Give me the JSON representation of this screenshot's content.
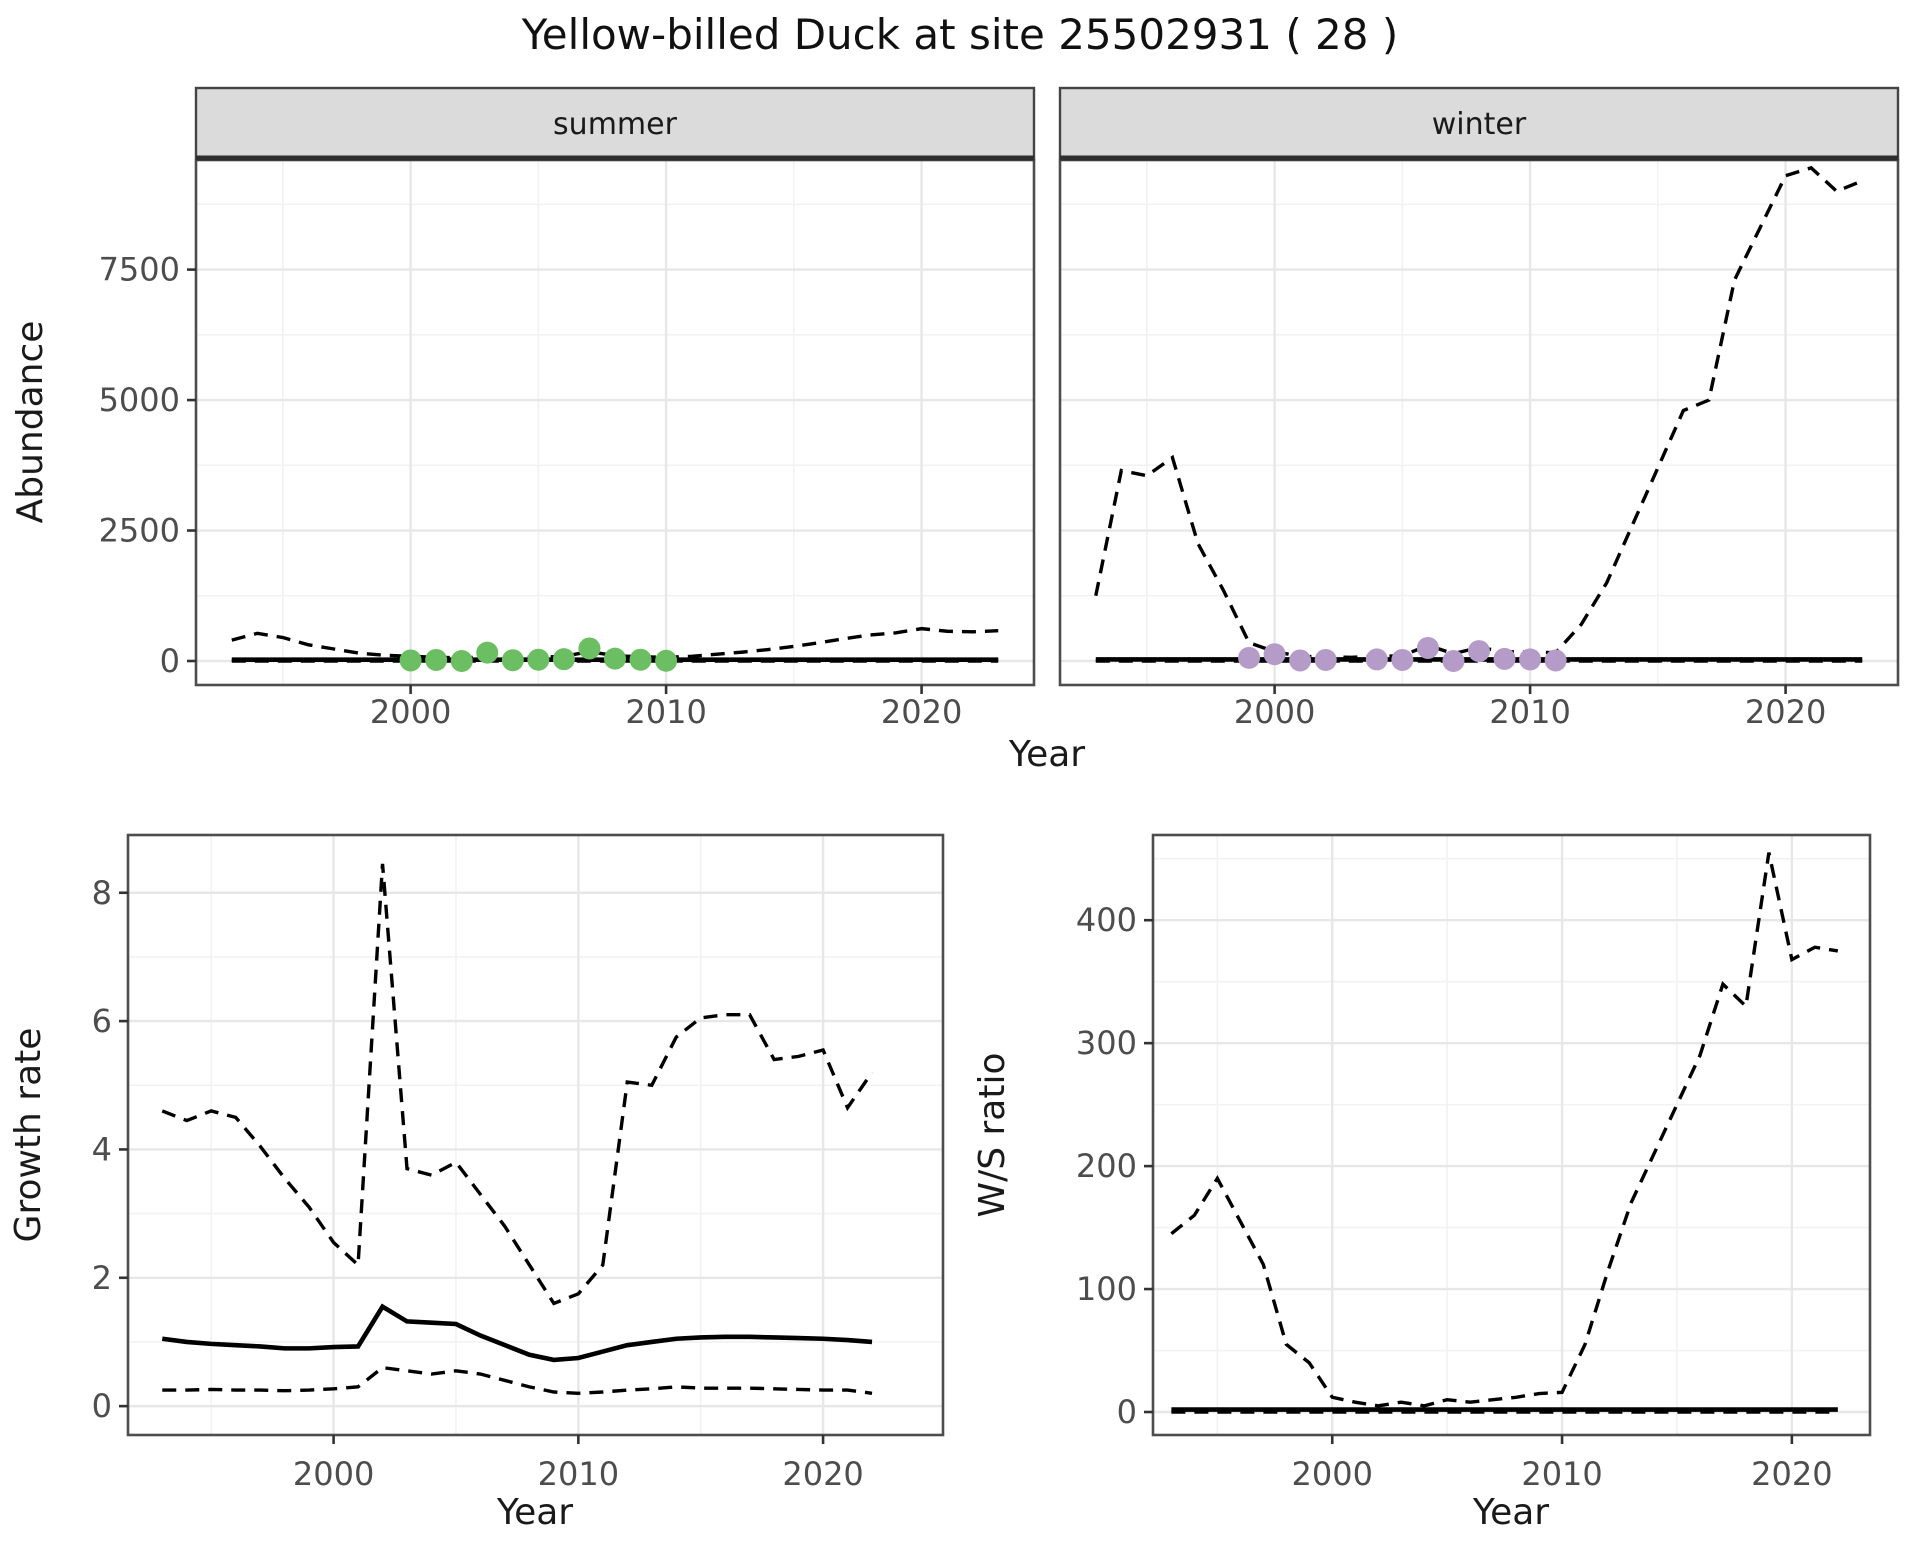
{
  "title": "Yellow-billed Duck at site 25502931 ( 28 )",
  "colors": {
    "background": "#FFFFFF",
    "line": "#000000",
    "summer_points": "#6CBE63",
    "winter_points": "#B59CC8",
    "strip_bg": "#DBDBDB",
    "strip_border": "#444444",
    "panel_border": "#4D4D4D",
    "grid_major": "#E7E7E7",
    "grid_minor": "#F2F2F2",
    "tick_label": "#4D4D4D",
    "axis_title": "#1A1A1A"
  },
  "axis": {
    "shared_x_title": "Year"
  },
  "chart_data": [
    {
      "id": "summer",
      "type": "line",
      "facet_label": "summer",
      "xlabel": "Year",
      "ylabel": "Abundance",
      "x_ticks": [
        2000,
        2010,
        2020
      ],
      "y_ticks": [
        0,
        2500,
        5000,
        7500
      ],
      "xlim": [
        1991.6,
        2024.4
      ],
      "ylim": [
        -460,
        9600
      ],
      "grid": true,
      "legend": "none",
      "x": [
        1993,
        1994,
        1995,
        1996,
        1997,
        1998,
        1999,
        2000,
        2001,
        2002,
        2003,
        2004,
        2005,
        2006,
        2007,
        2008,
        2009,
        2010,
        2011,
        2012,
        2013,
        2014,
        2015,
        2016,
        2017,
        2018,
        2019,
        2020,
        2021,
        2022,
        2023
      ],
      "series": [
        {
          "name": "upper 95% CI",
          "style": "dashed",
          "values": [
            400,
            530,
            450,
            310,
            230,
            150,
            110,
            90,
            70,
            60,
            80,
            70,
            70,
            90,
            180,
            100,
            80,
            70,
            90,
            130,
            170,
            220,
            280,
            350,
            430,
            500,
            540,
            620,
            570,
            560,
            580
          ]
        },
        {
          "name": "median",
          "style": "solid",
          "values": [
            25,
            25,
            25,
            25,
            25,
            25,
            25,
            25,
            25,
            25,
            25,
            25,
            25,
            25,
            25,
            25,
            25,
            25,
            25,
            25,
            25,
            25,
            25,
            25,
            25,
            25,
            25,
            25,
            25,
            25,
            25
          ]
        },
        {
          "name": "lower 95% CI",
          "style": "dashed",
          "values": [
            0,
            0,
            0,
            0,
            0,
            0,
            0,
            0,
            0,
            0,
            0,
            0,
            0,
            0,
            0,
            0,
            0,
            0,
            0,
            0,
            0,
            0,
            0,
            0,
            0,
            0,
            0,
            0,
            0,
            0,
            0
          ]
        }
      ],
      "points": {
        "name": "observed summer counts",
        "color": "#6CBE63",
        "x": [
          2000,
          2001,
          2002,
          2003,
          2004,
          2005,
          2006,
          2007,
          2008,
          2009,
          2010
        ],
        "y": [
          10,
          20,
          0,
          160,
          15,
          25,
          35,
          240,
          45,
          25,
          5
        ]
      }
    },
    {
      "id": "winter",
      "type": "line",
      "facet_label": "winter",
      "xlabel": "Year",
      "ylabel": "Abundance",
      "x_ticks": [
        2000,
        2010,
        2020
      ],
      "y_ticks": [
        0,
        2500,
        5000,
        7500
      ],
      "xlim": [
        1991.6,
        2024.4
      ],
      "ylim": [
        -460,
        9600
      ],
      "grid": true,
      "legend": "none",
      "x": [
        1993,
        1994,
        1995,
        1996,
        1997,
        1998,
        1999,
        2000,
        2001,
        2002,
        2003,
        2004,
        2005,
        2006,
        2007,
        2008,
        2009,
        2010,
        2011,
        2012,
        2013,
        2014,
        2015,
        2016,
        2017,
        2018,
        2019,
        2020,
        2021,
        2022,
        2023
      ],
      "series": [
        {
          "name": "upper 95% CI",
          "style": "dashed",
          "values": [
            1250,
            3650,
            3550,
            3900,
            2250,
            1350,
            350,
            180,
            90,
            80,
            70,
            90,
            100,
            300,
            140,
            260,
            180,
            170,
            160,
            700,
            1500,
            2600,
            3700,
            4800,
            5000,
            7300,
            8300,
            9300,
            9450,
            9000,
            9200
          ]
        },
        {
          "name": "median",
          "style": "solid",
          "values": [
            30,
            30,
            30,
            30,
            30,
            30,
            30,
            30,
            30,
            30,
            30,
            30,
            30,
            30,
            30,
            30,
            30,
            30,
            30,
            30,
            30,
            30,
            30,
            30,
            30,
            30,
            30,
            30,
            30,
            30,
            30
          ]
        },
        {
          "name": "lower 95% CI",
          "style": "dashed",
          "values": [
            0,
            0,
            0,
            0,
            0,
            0,
            0,
            0,
            0,
            0,
            0,
            0,
            0,
            0,
            0,
            0,
            0,
            0,
            0,
            0,
            0,
            0,
            0,
            0,
            0,
            0,
            0,
            0,
            0,
            0,
            0
          ]
        }
      ],
      "points": {
        "name": "observed winter counts",
        "color": "#B59CC8",
        "x": [
          1999,
          2000,
          2001,
          2002,
          2004,
          2005,
          2006,
          2007,
          2008,
          2009,
          2010,
          2011
        ],
        "y": [
          60,
          130,
          10,
          20,
          30,
          20,
          250,
          0,
          190,
          40,
          30,
          10
        ]
      }
    },
    {
      "id": "growth_rate",
      "type": "line",
      "facet_label": null,
      "xlabel": "Year",
      "ylabel": "Growth rate",
      "x_ticks": [
        2000,
        2010,
        2020
      ],
      "y_ticks": [
        0,
        2,
        4,
        6,
        8
      ],
      "xlim": [
        1991.6,
        2024.9
      ],
      "ylim": [
        -0.45,
        8.9
      ],
      "grid": true,
      "legend": "none",
      "x": [
        1993,
        1994,
        1995,
        1996,
        1997,
        1998,
        1999,
        2000,
        2001,
        2002,
        2003,
        2004,
        2005,
        2006,
        2007,
        2008,
        2009,
        2010,
        2011,
        2012,
        2013,
        2014,
        2015,
        2016,
        2017,
        2018,
        2019,
        2020,
        2021,
        2022
      ],
      "series": [
        {
          "name": "upper 95% CI",
          "style": "dashed",
          "values": [
            4.6,
            4.45,
            4.6,
            4.5,
            4.05,
            3.55,
            3.1,
            2.55,
            2.2,
            8.45,
            3.7,
            3.6,
            3.8,
            3.3,
            2.8,
            2.2,
            1.6,
            1.75,
            2.2,
            5.05,
            5.0,
            5.75,
            6.05,
            6.1,
            6.1,
            5.4,
            5.45,
            5.55,
            4.65,
            5.2
          ]
        },
        {
          "name": "median",
          "style": "solid",
          "values": [
            1.05,
            1.0,
            0.97,
            0.95,
            0.93,
            0.9,
            0.9,
            0.92,
            0.93,
            1.55,
            1.32,
            1.3,
            1.28,
            1.1,
            0.95,
            0.8,
            0.72,
            0.75,
            0.85,
            0.95,
            1.0,
            1.05,
            1.07,
            1.08,
            1.08,
            1.07,
            1.06,
            1.05,
            1.03,
            1.0
          ]
        },
        {
          "name": "lower 95% CI",
          "style": "dashed",
          "values": [
            0.25,
            0.25,
            0.26,
            0.25,
            0.25,
            0.24,
            0.25,
            0.27,
            0.3,
            0.6,
            0.55,
            0.5,
            0.55,
            0.5,
            0.4,
            0.3,
            0.22,
            0.2,
            0.22,
            0.25,
            0.27,
            0.3,
            0.28,
            0.28,
            0.28,
            0.27,
            0.26,
            0.25,
            0.25,
            0.2
          ]
        }
      ],
      "points": null
    },
    {
      "id": "ws_ratio",
      "type": "line",
      "facet_label": null,
      "xlabel": "Year",
      "ylabel": "W/S ratio",
      "x_ticks": [
        2000,
        2010,
        2020
      ],
      "y_ticks": [
        0,
        100,
        200,
        300,
        400
      ],
      "xlim": [
        1992.2,
        2023.4
      ],
      "ylim": [
        -18.7,
        469.3
      ],
      "grid": true,
      "legend": "none",
      "x": [
        1993,
        1994,
        1995,
        1996,
        1997,
        1998,
        1999,
        2000,
        2001,
        2002,
        2003,
        2004,
        2005,
        2006,
        2007,
        2008,
        2009,
        2010,
        2011,
        2012,
        2013,
        2014,
        2015,
        2016,
        2017,
        2018,
        2019,
        2020,
        2021,
        2022
      ],
      "series": [
        {
          "name": "upper 95% CI",
          "style": "dashed",
          "values": [
            145,
            160,
            190,
            155,
            120,
            55,
            40,
            12,
            8,
            5,
            8,
            5,
            10,
            8,
            10,
            12,
            15,
            16,
            55,
            115,
            170,
            210,
            250,
            290,
            348,
            330,
            455,
            368,
            378,
            375
          ]
        },
        {
          "name": "median",
          "style": "solid",
          "values": [
            2,
            2,
            2,
            2,
            2,
            2,
            2,
            2,
            2,
            2,
            2,
            2,
            2,
            2,
            2,
            2,
            2,
            2,
            2,
            2,
            2,
            2,
            2,
            2,
            2,
            2,
            2,
            2,
            2,
            2
          ]
        },
        {
          "name": "lower 95% CI",
          "style": "dashed",
          "values": [
            0,
            0,
            0,
            0,
            0,
            0,
            0,
            0,
            0,
            0,
            0,
            0,
            0,
            0,
            0,
            0,
            0,
            0,
            0,
            0,
            0,
            0,
            0,
            0,
            0,
            0,
            0,
            0,
            0,
            0
          ]
        }
      ],
      "points": null
    }
  ]
}
